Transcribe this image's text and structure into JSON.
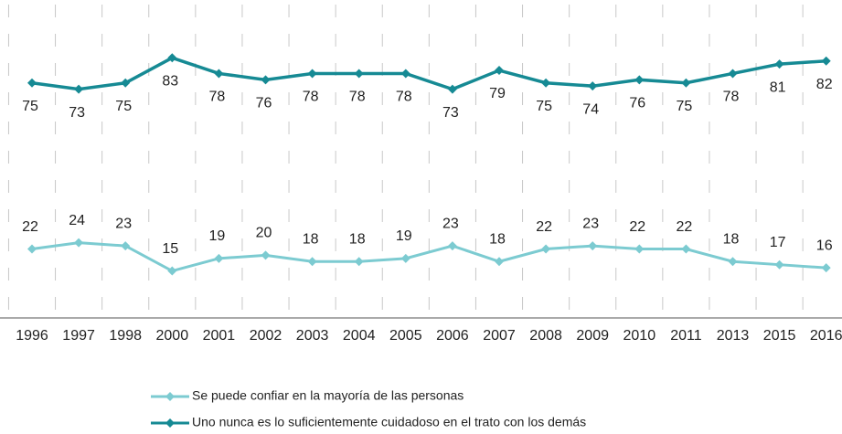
{
  "chart_data": {
    "type": "line",
    "categories": [
      "1996",
      "1997",
      "1998",
      "2000",
      "2001",
      "2002",
      "2003",
      "2004",
      "2005",
      "2006",
      "2007",
      "2008",
      "2009",
      "2010",
      "2011",
      "2013",
      "2015",
      "2016"
    ],
    "series": [
      {
        "name": "Se puede confiar en la mayoría de las personas",
        "color": "#7ccbd1",
        "values": [
          22,
          24,
          23,
          15,
          19,
          20,
          18,
          18,
          19,
          23,
          18,
          22,
          23,
          22,
          22,
          18,
          17,
          16
        ]
      },
      {
        "name": "Uno nunca es lo suficientemente cuidadoso en el trato con los demás",
        "color": "#168a94",
        "values": [
          75,
          73,
          75,
          83,
          78,
          76,
          78,
          78,
          78,
          73,
          79,
          75,
          74,
          76,
          75,
          78,
          81,
          82
        ]
      }
    ],
    "ylim": [
      0,
      100
    ],
    "legend": "bottom"
  }
}
